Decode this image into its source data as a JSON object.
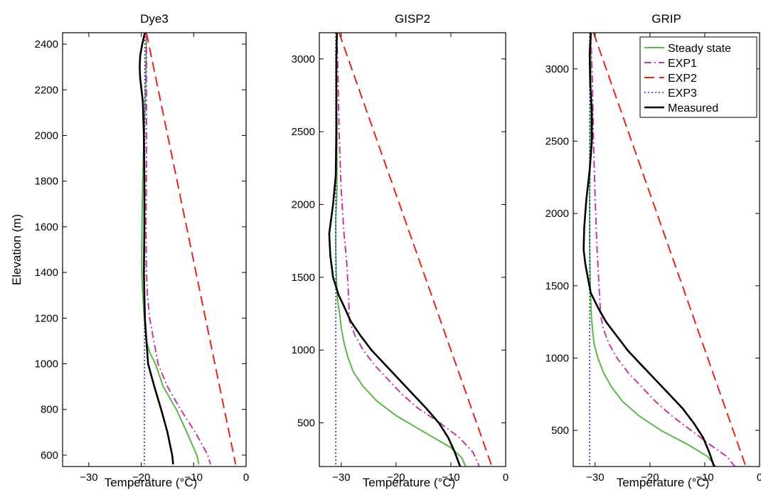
{
  "chart_data": [
    {
      "type": "line",
      "title": "Dye3",
      "xlabel": "Temperature (°C)",
      "ylabel": "Elevation (m)",
      "xlim": [
        -35,
        0
      ],
      "ylim": [
        550,
        2450
      ],
      "xticks": [
        -30,
        -20,
        -10,
        0
      ],
      "yticks": [
        600,
        800,
        1000,
        1200,
        1400,
        1600,
        1800,
        2000,
        2200,
        2400
      ],
      "series": [
        {
          "name": "Steady state",
          "color": "#59b848",
          "style": "solid",
          "points": [
            [
              -19.0,
              2450
            ],
            [
              -19.1,
              2300
            ],
            [
              -19.3,
              2100
            ],
            [
              -19.6,
              1900
            ],
            [
              -19.8,
              1700
            ],
            [
              -19.9,
              1500
            ],
            [
              -19.9,
              1400
            ],
            [
              -19.7,
              1300
            ],
            [
              -19.4,
              1200
            ],
            [
              -19.0,
              1100
            ],
            [
              -18.4,
              1050
            ],
            [
              -17.3,
              1000
            ],
            [
              -15.8,
              900
            ],
            [
              -13.3,
              800
            ],
            [
              -11.3,
              700
            ],
            [
              -9.4,
              600
            ],
            [
              -9.0,
              560
            ]
          ]
        },
        {
          "name": "EXP1",
          "color": "#c0399f",
          "style": "dashdot",
          "points": [
            [
              -19.0,
              2450
            ],
            [
              -19.0,
              2200
            ],
            [
              -19.0,
              1900
            ],
            [
              -19.1,
              1600
            ],
            [
              -19.0,
              1400
            ],
            [
              -18.8,
              1300
            ],
            [
              -18.4,
              1200
            ],
            [
              -17.6,
              1100
            ],
            [
              -16.8,
              1000
            ],
            [
              -15.0,
              900
            ],
            [
              -12.5,
              800
            ],
            [
              -9.7,
              700
            ],
            [
              -7.3,
              600
            ],
            [
              -6.8,
              560
            ]
          ]
        },
        {
          "name": "EXP2",
          "color": "#e4251c",
          "style": "dashed",
          "points": [
            [
              -19.0,
              2450
            ],
            [
              -2.0,
              560
            ]
          ]
        },
        {
          "name": "EXP3",
          "color": "#2b2bc9",
          "style": "dotted",
          "points": [
            [
              -19.3,
              2450
            ],
            [
              -19.4,
              560
            ]
          ]
        },
        {
          "name": "Measured",
          "color": "#000000",
          "style": "solid",
          "points": [
            [
              -19.3,
              2450
            ],
            [
              -19.8,
              2400
            ],
            [
              -20.2,
              2350
            ],
            [
              -20.3,
              2300
            ],
            [
              -20.2,
              2250
            ],
            [
              -19.7,
              2150
            ],
            [
              -19.5,
              2000
            ],
            [
              -19.4,
              1800
            ],
            [
              -19.4,
              1600
            ],
            [
              -19.5,
              1400
            ],
            [
              -19.3,
              1200
            ],
            [
              -19.0,
              1100
            ],
            [
              -18.7,
              1000
            ],
            [
              -17.5,
              900
            ],
            [
              -16.2,
              800
            ],
            [
              -15.0,
              700
            ],
            [
              -14.1,
              600
            ],
            [
              -13.9,
              560
            ]
          ]
        }
      ]
    },
    {
      "type": "line",
      "title": "GISP2",
      "xlabel": "Temperature (°C)",
      "ylabel": "",
      "xlim": [
        -34,
        0
      ],
      "ylim": [
        200,
        3180
      ],
      "xticks": [
        -30,
        -20,
        -10,
        0
      ],
      "yticks": [
        500,
        1000,
        1500,
        2000,
        2500,
        3000
      ],
      "series": [
        {
          "name": "Steady state",
          "color": "#59b848",
          "style": "solid",
          "points": [
            [
              -30.8,
              3180
            ],
            [
              -30.9,
              2900
            ],
            [
              -30.8,
              2500
            ],
            [
              -30.8,
              2100
            ],
            [
              -31.0,
              1900
            ],
            [
              -31.0,
              1700
            ],
            [
              -30.9,
              1500
            ],
            [
              -30.7,
              1350
            ],
            [
              -30.3,
              1250
            ],
            [
              -30.0,
              1150
            ],
            [
              -29.5,
              1050
            ],
            [
              -28.8,
              950
            ],
            [
              -27.8,
              850
            ],
            [
              -26.0,
              750
            ],
            [
              -23.5,
              650
            ],
            [
              -20.0,
              550
            ],
            [
              -15.5,
              450
            ],
            [
              -10.0,
              330
            ],
            [
              -8.0,
              260
            ],
            [
              -7.3,
              200
            ]
          ]
        },
        {
          "name": "EXP1",
          "color": "#c0399f",
          "style": "dashdot",
          "points": [
            [
              -30.8,
              3180
            ],
            [
              -30.6,
              2900
            ],
            [
              -30.4,
              2500
            ],
            [
              -30.0,
              2100
            ],
            [
              -29.5,
              1800
            ],
            [
              -29.0,
              1600
            ],
            [
              -28.7,
              1400
            ],
            [
              -28.5,
              1200
            ],
            [
              -27.5,
              1100
            ],
            [
              -26.0,
              1000
            ],
            [
              -24.0,
              900
            ],
            [
              -21.5,
              800
            ],
            [
              -19.0,
              700
            ],
            [
              -16.0,
              600
            ],
            [
              -12.0,
              500
            ],
            [
              -8.5,
              400
            ],
            [
              -6.0,
              300
            ],
            [
              -4.8,
              200
            ]
          ]
        },
        {
          "name": "EXP2",
          "color": "#e4251c",
          "style": "dashed",
          "points": [
            [
              -30.4,
              3180
            ],
            [
              -2.5,
              200
            ]
          ]
        },
        {
          "name": "EXP3",
          "color": "#2b2bc9",
          "style": "dotted",
          "points": [
            [
              -31.0,
              3180
            ],
            [
              -31.0,
              200
            ]
          ]
        },
        {
          "name": "Measured",
          "color": "#000000",
          "style": "solid",
          "points": [
            [
              -30.8,
              3180
            ],
            [
              -30.9,
              3000
            ],
            [
              -30.9,
              2800
            ],
            [
              -30.9,
              2500
            ],
            [
              -31.0,
              2200
            ],
            [
              -31.5,
              2000
            ],
            [
              -32.2,
              1800
            ],
            [
              -32.0,
              1650
            ],
            [
              -31.5,
              1500
            ],
            [
              -30.5,
              1380
            ],
            [
              -29.5,
              1300
            ],
            [
              -28.3,
              1200
            ],
            [
              -26.5,
              1100
            ],
            [
              -24.5,
              1000
            ],
            [
              -22.0,
              900
            ],
            [
              -19.5,
              800
            ],
            [
              -17.0,
              700
            ],
            [
              -14.5,
              600
            ],
            [
              -12.2,
              500
            ],
            [
              -10.5,
              400
            ],
            [
              -9.3,
              300
            ],
            [
              -8.3,
              200
            ]
          ]
        }
      ]
    },
    {
      "type": "line",
      "title": "GRIP",
      "xlabel": "Temperature (°C)",
      "ylabel": "",
      "xlim": [
        -34,
        0
      ],
      "ylim": [
        250,
        3250
      ],
      "xticks": [
        -30,
        -20,
        -10,
        0
      ],
      "yticks": [
        500,
        1000,
        1500,
        2000,
        2500,
        3000
      ],
      "legend": {
        "location": "top-right",
        "entries": [
          "Steady state",
          "EXP1",
          "EXP2",
          "EXP3",
          "Measured"
        ]
      },
      "series": [
        {
          "name": "Steady state",
          "color": "#59b848",
          "style": "solid",
          "points": [
            [
              -30.8,
              3250
            ],
            [
              -30.8,
              2900
            ],
            [
              -30.9,
              2500
            ],
            [
              -31.0,
              2100
            ],
            [
              -31.0,
              1800
            ],
            [
              -30.9,
              1500
            ],
            [
              -30.7,
              1300
            ],
            [
              -30.5,
              1200
            ],
            [
              -30.2,
              1100
            ],
            [
              -29.5,
              1000
            ],
            [
              -28.5,
              900
            ],
            [
              -27.0,
              800
            ],
            [
              -25.0,
              700
            ],
            [
              -22.0,
              600
            ],
            [
              -18.0,
              500
            ],
            [
              -13.0,
              400
            ],
            [
              -9.5,
              320
            ],
            [
              -8.0,
              250
            ]
          ]
        },
        {
          "name": "EXP1",
          "color": "#c0399f",
          "style": "dashdot",
          "points": [
            [
              -30.8,
              3250
            ],
            [
              -30.5,
              2900
            ],
            [
              -30.3,
              2500
            ],
            [
              -30.0,
              2100
            ],
            [
              -29.7,
              1800
            ],
            [
              -29.3,
              1500
            ],
            [
              -29.0,
              1300
            ],
            [
              -28.5,
              1200
            ],
            [
              -27.5,
              1100
            ],
            [
              -26.0,
              1000
            ],
            [
              -24.0,
              900
            ],
            [
              -21.5,
              800
            ],
            [
              -19.0,
              700
            ],
            [
              -16.0,
              600
            ],
            [
              -12.5,
              500
            ],
            [
              -9.0,
              400
            ],
            [
              -6.0,
              320
            ],
            [
              -4.5,
              250
            ]
          ]
        },
        {
          "name": "EXP2",
          "color": "#e4251c",
          "style": "dashed",
          "points": [
            [
              -30.3,
              3250
            ],
            [
              -2.5,
              250
            ]
          ]
        },
        {
          "name": "EXP3",
          "color": "#2b2bc9",
          "style": "dotted",
          "points": [
            [
              -31.0,
              3250
            ],
            [
              -31.0,
              250
            ]
          ]
        },
        {
          "name": "Measured",
          "color": "#000000",
          "style": "solid",
          "points": [
            [
              -30.8,
              3250
            ],
            [
              -31.0,
              3100
            ],
            [
              -30.9,
              2900
            ],
            [
              -30.6,
              2700
            ],
            [
              -30.6,
              2500
            ],
            [
              -31.0,
              2300
            ],
            [
              -31.6,
              2100
            ],
            [
              -32.0,
              1900
            ],
            [
              -32.1,
              1750
            ],
            [
              -31.8,
              1650
            ],
            [
              -31.3,
              1550
            ],
            [
              -30.8,
              1450
            ],
            [
              -29.5,
              1350
            ],
            [
              -28.0,
              1250
            ],
            [
              -26.0,
              1150
            ],
            [
              -24.0,
              1050
            ],
            [
              -21.5,
              950
            ],
            [
              -19.0,
              850
            ],
            [
              -16.5,
              750
            ],
            [
              -14.0,
              650
            ],
            [
              -12.0,
              550
            ],
            [
              -10.3,
              450
            ],
            [
              -9.2,
              350
            ],
            [
              -8.3,
              250
            ]
          ]
        }
      ]
    }
  ]
}
